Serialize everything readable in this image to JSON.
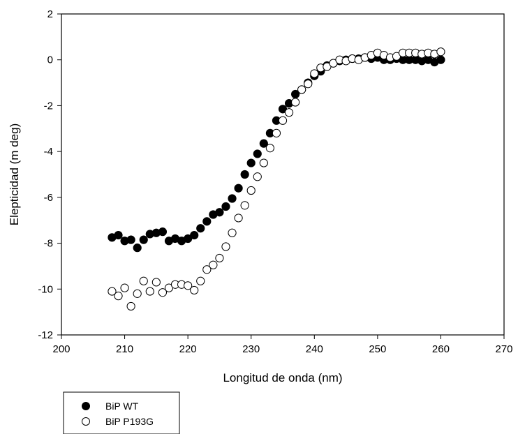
{
  "chart_data": {
    "type": "scatter",
    "xlabel": "Longitud de onda (nm)",
    "ylabel": "Elepticidad (m deg)",
    "xlim": [
      200,
      270
    ],
    "ylim": [
      -12,
      2
    ],
    "x_ticks": [
      "200",
      "210",
      "220",
      "230",
      "240",
      "250",
      "260",
      "270"
    ],
    "y_ticks": [
      "2",
      "0",
      "-2",
      "-4",
      "-6",
      "-8",
      "-10",
      "-12"
    ],
    "grid": false,
    "legend_position": "bottom-left",
    "series": [
      {
        "name": "BiP WT",
        "marker": "filled-circle",
        "color": "#000000",
        "points": [
          [
            208,
            -7.75
          ],
          [
            209,
            -7.65
          ],
          [
            210,
            -7.9
          ],
          [
            211,
            -7.85
          ],
          [
            212,
            -8.2
          ],
          [
            213,
            -7.85
          ],
          [
            214,
            -7.6
          ],
          [
            215,
            -7.55
          ],
          [
            216,
            -7.5
          ],
          [
            217,
            -7.9
          ],
          [
            218,
            -7.8
          ],
          [
            219,
            -7.9
          ],
          [
            220,
            -7.8
          ],
          [
            221,
            -7.65
          ],
          [
            222,
            -7.35
          ],
          [
            223,
            -7.05
          ],
          [
            224,
            -6.75
          ],
          [
            225,
            -6.65
          ],
          [
            226,
            -6.4
          ],
          [
            227,
            -6.05
          ],
          [
            228,
            -5.6
          ],
          [
            229,
            -5.0
          ],
          [
            230,
            -4.5
          ],
          [
            231,
            -4.1
          ],
          [
            232,
            -3.65
          ],
          [
            233,
            -3.2
          ],
          [
            234,
            -2.65
          ],
          [
            235,
            -2.15
          ],
          [
            236,
            -1.9
          ],
          [
            237,
            -1.5
          ],
          [
            238,
            -1.3
          ],
          [
            239,
            -1.0
          ],
          [
            240,
            -0.7
          ],
          [
            241,
            -0.5
          ],
          [
            242,
            -0.25
          ],
          [
            243,
            -0.15
          ],
          [
            244,
            -0.05
          ],
          [
            245,
            0.0
          ],
          [
            246,
            0.05
          ],
          [
            247,
            0.05
          ],
          [
            248,
            0.1
          ],
          [
            249,
            0.05
          ],
          [
            250,
            0.1
          ],
          [
            251,
            0.0
          ],
          [
            252,
            0.0
          ],
          [
            253,
            0.05
          ],
          [
            254,
            0.0
          ],
          [
            255,
            0.0
          ],
          [
            256,
            0.0
          ],
          [
            257,
            -0.05
          ],
          [
            258,
            0.0
          ],
          [
            259,
            -0.1
          ],
          [
            260,
            0.0
          ]
        ]
      },
      {
        "name": "BiP P193G",
        "marker": "open-circle",
        "color": "#000000",
        "points": [
          [
            208,
            -10.1
          ],
          [
            209,
            -10.3
          ],
          [
            210,
            -9.95
          ],
          [
            211,
            -10.75
          ],
          [
            212,
            -10.2
          ],
          [
            213,
            -9.65
          ],
          [
            214,
            -10.1
          ],
          [
            215,
            -9.7
          ],
          [
            216,
            -10.15
          ],
          [
            217,
            -9.95
          ],
          [
            218,
            -9.8
          ],
          [
            219,
            -9.8
          ],
          [
            220,
            -9.85
          ],
          [
            221,
            -10.05
          ],
          [
            222,
            -9.65
          ],
          [
            223,
            -9.15
          ],
          [
            224,
            -8.95
          ],
          [
            225,
            -8.65
          ],
          [
            226,
            -8.15
          ],
          [
            227,
            -7.55
          ],
          [
            228,
            -6.9
          ],
          [
            229,
            -6.35
          ],
          [
            230,
            -5.7
          ],
          [
            231,
            -5.1
          ],
          [
            232,
            -4.5
          ],
          [
            233,
            -3.85
          ],
          [
            234,
            -3.2
          ],
          [
            235,
            -2.65
          ],
          [
            236,
            -2.3
          ],
          [
            237,
            -1.85
          ],
          [
            238,
            -1.3
          ],
          [
            239,
            -1.05
          ],
          [
            240,
            -0.6
          ],
          [
            241,
            -0.35
          ],
          [
            242,
            -0.3
          ],
          [
            243,
            -0.15
          ],
          [
            244,
            0.0
          ],
          [
            245,
            -0.05
          ],
          [
            246,
            0.05
          ],
          [
            247,
            0.0
          ],
          [
            248,
            0.1
          ],
          [
            249,
            0.2
          ],
          [
            250,
            0.3
          ],
          [
            251,
            0.2
          ],
          [
            252,
            0.1
          ],
          [
            253,
            0.15
          ],
          [
            254,
            0.3
          ],
          [
            255,
            0.3
          ],
          [
            256,
            0.3
          ],
          [
            257,
            0.25
          ],
          [
            258,
            0.3
          ],
          [
            259,
            0.25
          ],
          [
            260,
            0.35
          ]
        ]
      }
    ]
  }
}
